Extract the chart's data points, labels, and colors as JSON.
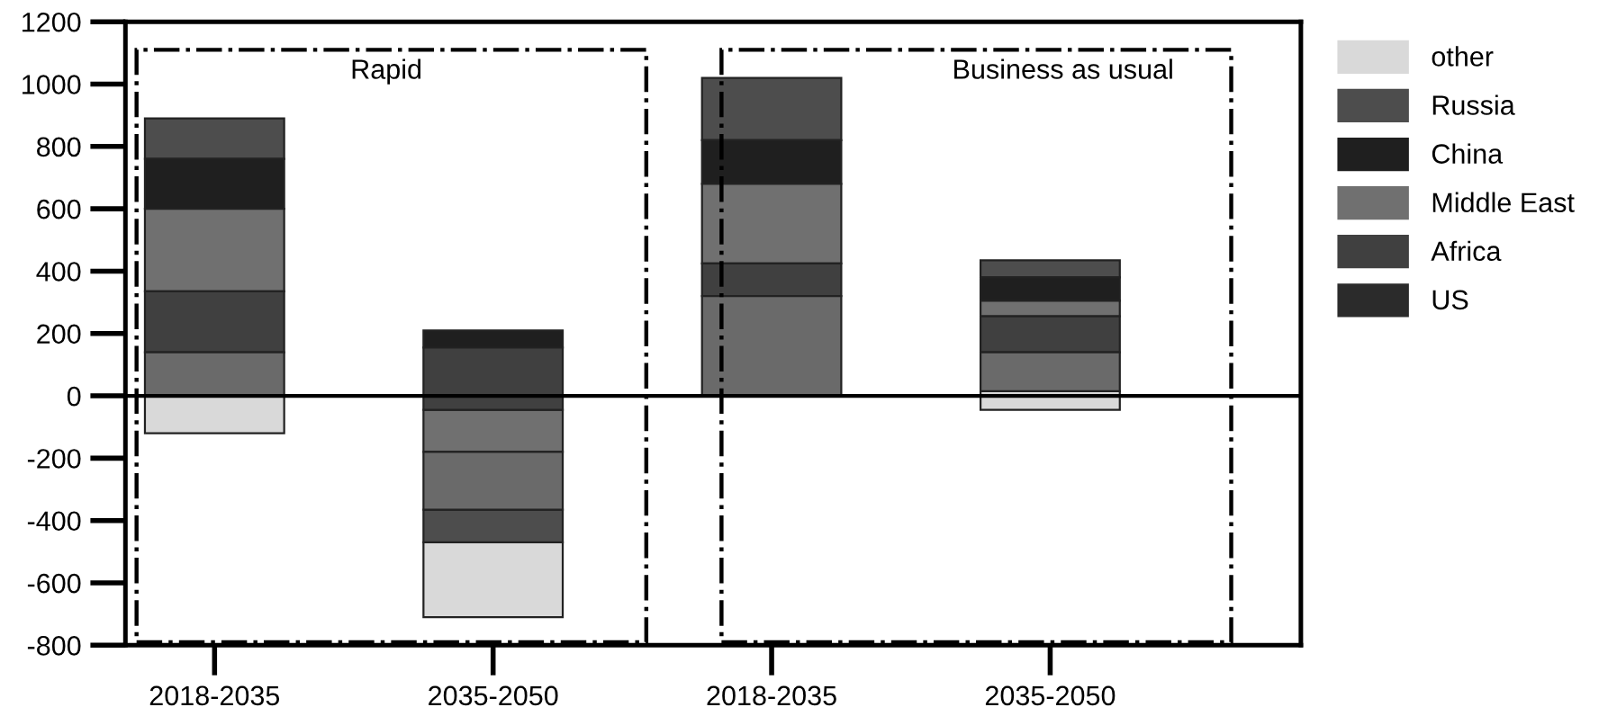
{
  "chart_data": {
    "type": "bar",
    "categories": [
      "2018-2035",
      "2035-2050",
      "2018-2035",
      "2035-2050"
    ],
    "series": [
      {
        "name": "other",
        "color": "#d9d9d9",
        "base": [
          -120,
          -710,
          null,
          -45
        ],
        "values": [
          120,
          240,
          null,
          60
        ]
      },
      {
        "name": "Russia",
        "color": "#4d4d4d",
        "base": [
          760,
          -470,
          820,
          380
        ],
        "values": [
          130,
          105,
          200,
          55
        ]
      },
      {
        "name": "China",
        "color": "#1f1f1f",
        "base": [
          600,
          155,
          680,
          305
        ],
        "values": [
          160,
          55,
          140,
          75
        ]
      },
      {
        "name": "Middle East",
        "color": "#707070",
        "base": [
          335,
          -180,
          425,
          255
        ],
        "values": [
          265,
          135,
          255,
          50
        ]
      },
      {
        "name": "Africa",
        "color": "#404040",
        "base": [
          140,
          -45,
          320,
          140
        ],
        "values": [
          195,
          200,
          105,
          115
        ]
      },
      {
        "name": "US",
        "color": "#2b2b2b",
        "base": [
          null,
          null,
          null,
          null
        ],
        "values": [
          null,
          null,
          null,
          null
        ]
      },
      {
        "color": "#6a6a6a",
        "base": [
          0,
          -365,
          0,
          15
        ],
        "values": [
          140,
          185,
          320,
          125
        ]
      }
    ],
    "ylim": [
      -800,
      1200
    ],
    "yticks": [
      -800,
      -600,
      -400,
      -200,
      0,
      200,
      400,
      600,
      800,
      1000,
      1200
    ],
    "ref_lines": [
      {
        "axis": "y",
        "value": 0
      }
    ],
    "annotations": [
      "Rapid",
      "Business as usual"
    ],
    "legend": "right",
    "grid": false
  }
}
